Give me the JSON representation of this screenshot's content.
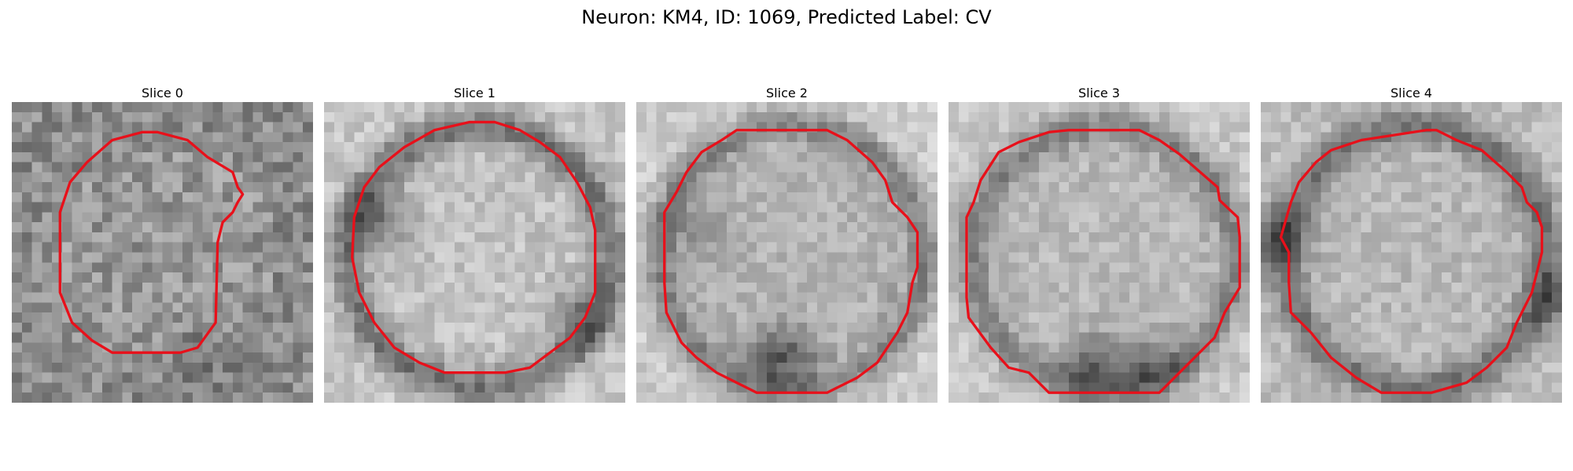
{
  "title": "Neuron: KM4, ID: 1069, Predicted Label: CV",
  "contour_color": "#e8101a",
  "slices": [
    {
      "label": "Slice 0"
    },
    {
      "label": "Slice 1"
    },
    {
      "label": "Slice 2"
    },
    {
      "label": "Slice 3"
    },
    {
      "label": "Slice 4"
    }
  ]
}
